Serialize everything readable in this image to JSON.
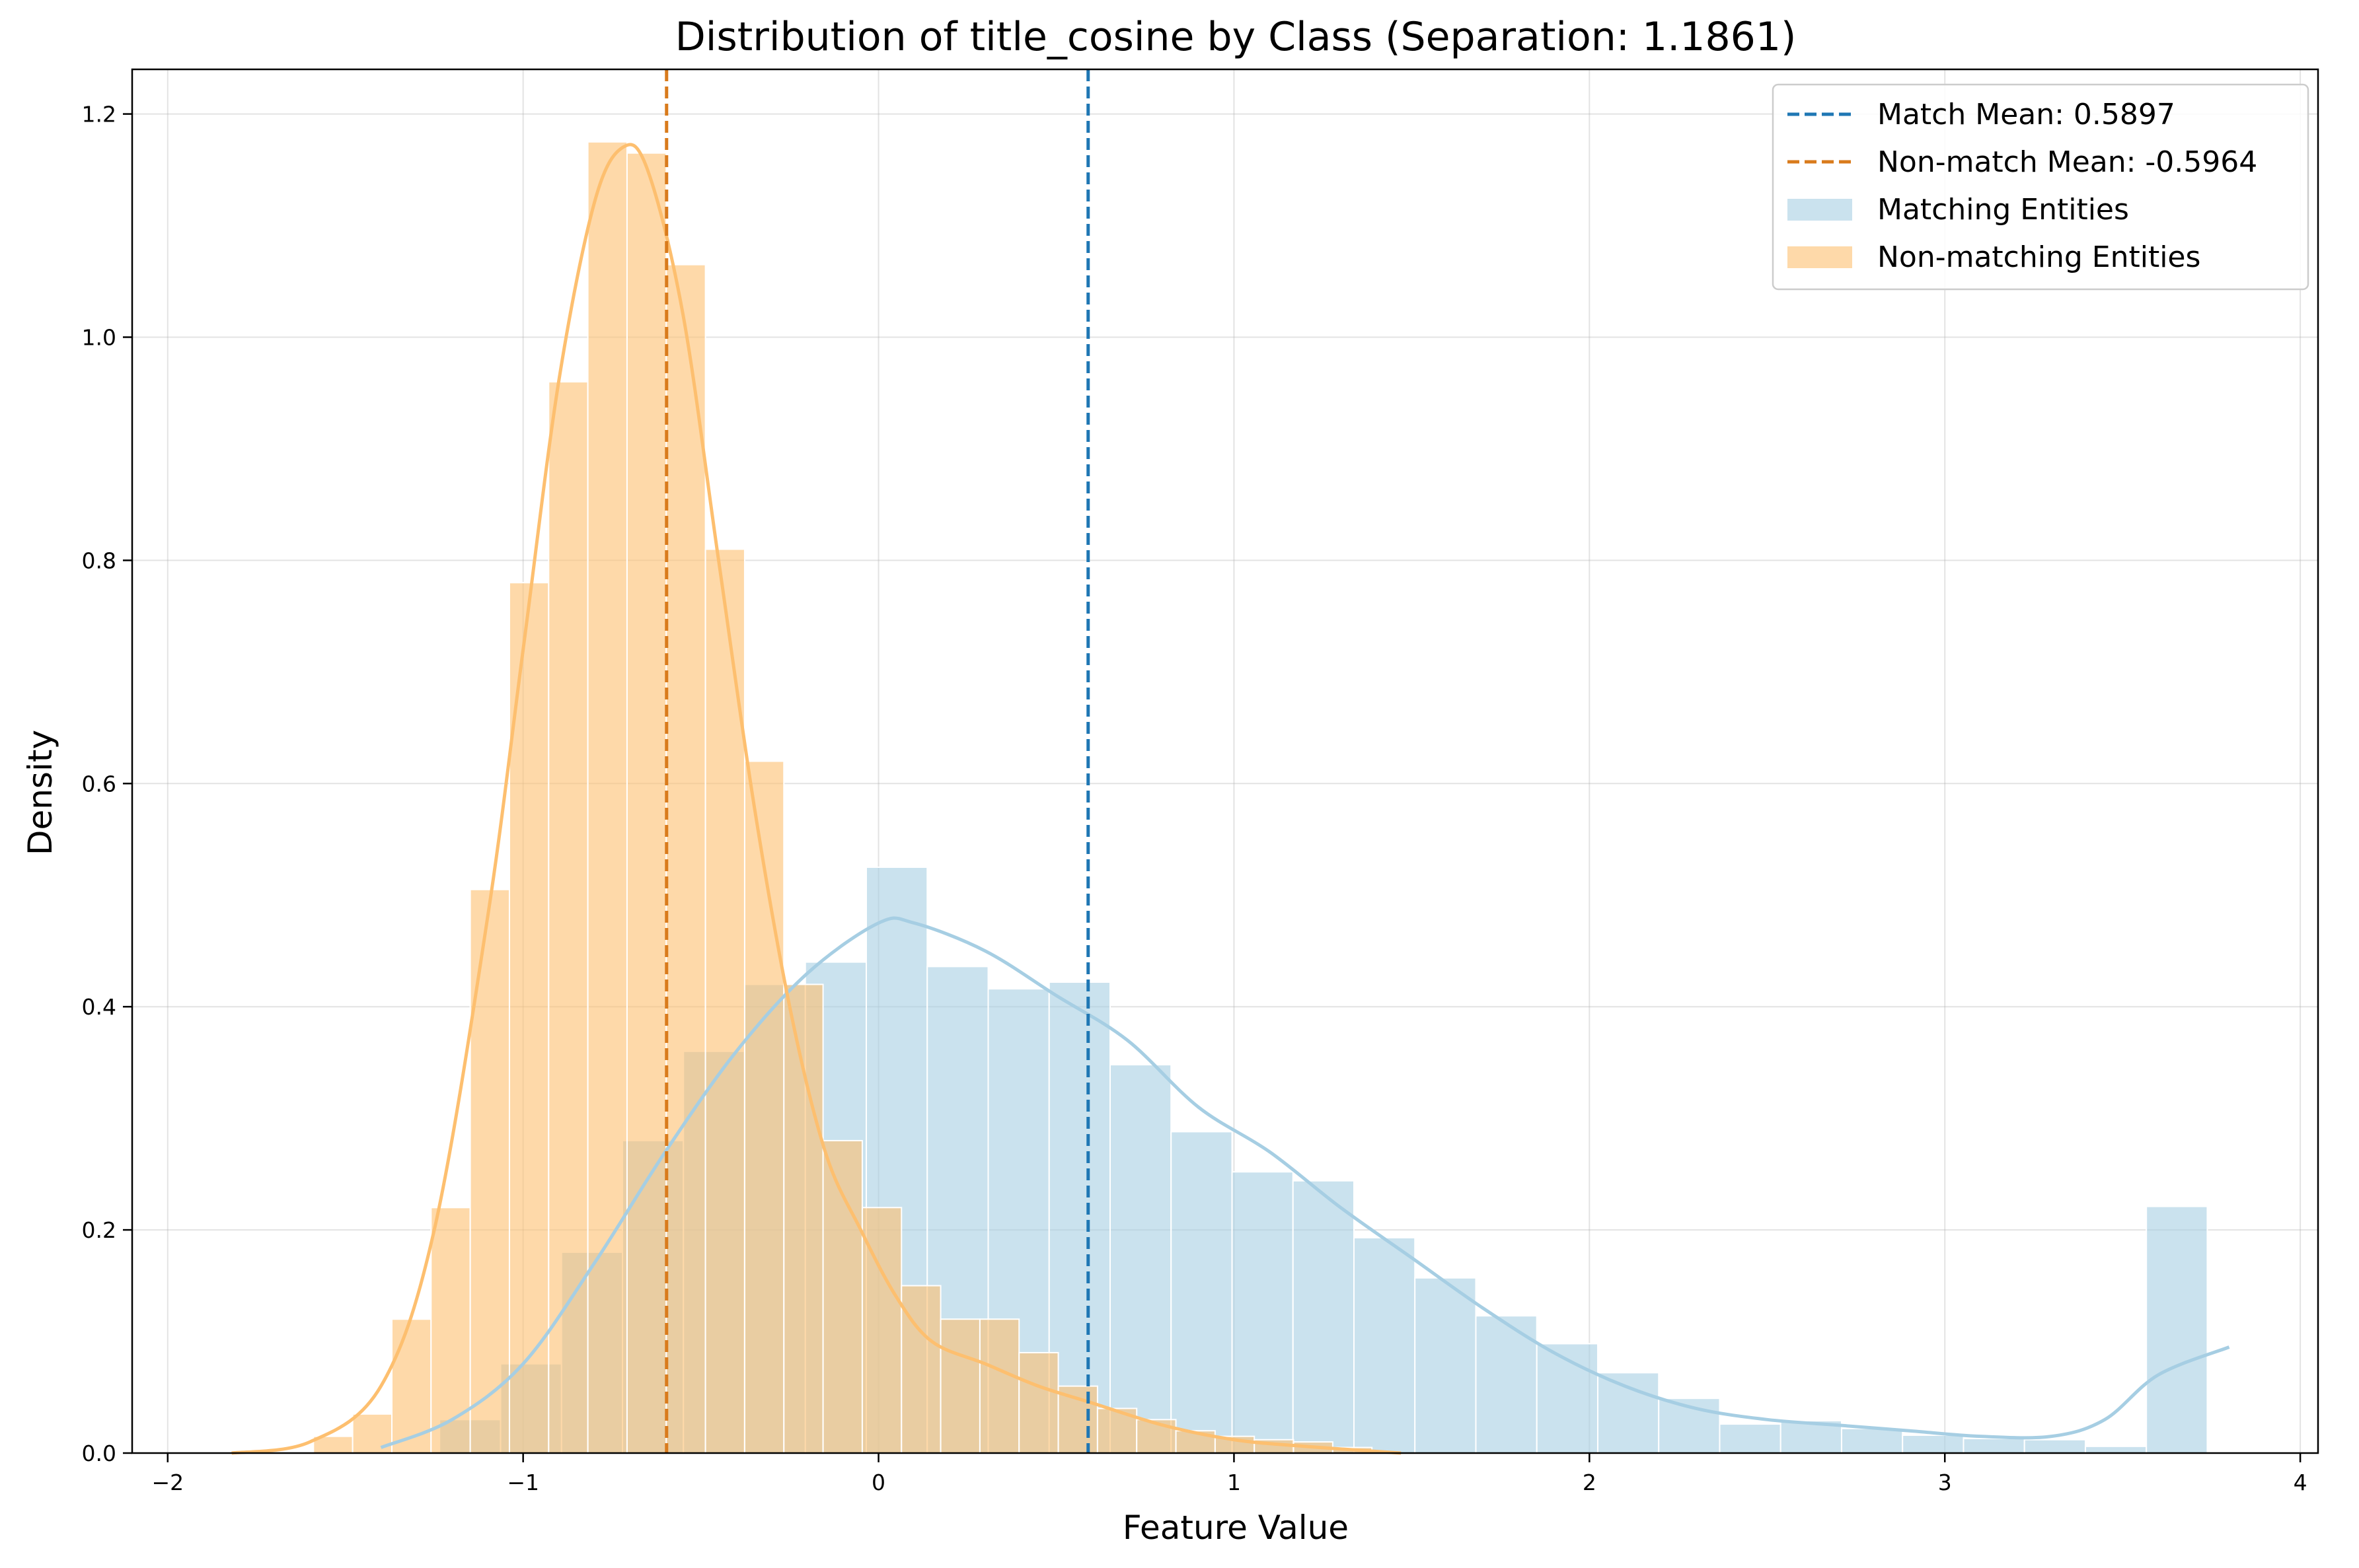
{
  "chart_data": {
    "type": "bar",
    "title": "Distribution of title_cosine by Class (Separation: 1.1861)",
    "xlabel": "Feature Value",
    "ylabel": "Density",
    "xlim": [
      -2.1,
      4.05
    ],
    "ylim": [
      0,
      1.24
    ],
    "xticks": [
      -2,
      -1,
      0,
      1,
      2,
      3,
      4
    ],
    "xtick_labels": [
      "−2",
      "−1",
      "0",
      "1",
      "2",
      "3",
      "4"
    ],
    "yticks": [
      0.0,
      0.2,
      0.4,
      0.6,
      0.8,
      1.0,
      1.2
    ],
    "ytick_labels": [
      "0.0",
      "0.2",
      "0.4",
      "0.6",
      "0.8",
      "1.0",
      "1.2"
    ],
    "grid": true,
    "legend_position": "top-right",
    "vlines": [
      {
        "name": "Match Mean: 0.5897",
        "x": 0.5897,
        "color": "#1f77b4",
        "style": "dashed"
      },
      {
        "name": "Non-match Mean: -0.5964",
        "x": -0.5964,
        "color": "#d97b1c",
        "style": "dashed"
      }
    ],
    "series": [
      {
        "name": "Matching Entities",
        "color": "#a6cee3",
        "bin_start": -1.235,
        "bin_width": 0.1715,
        "values": [
          0.03,
          0.08,
          0.18,
          0.28,
          0.36,
          0.42,
          0.44,
          0.525,
          0.436,
          0.416,
          0.422,
          0.348,
          0.288,
          0.252,
          0.244,
          0.193,
          0.157,
          0.123,
          0.098,
          0.072,
          0.049,
          0.026,
          0.029,
          0.022,
          0.016,
          0.013,
          0.012,
          0.006,
          0.221
        ],
        "kde": {
          "x": [
            -1.4,
            -1.2,
            -1.0,
            -0.8,
            -0.6,
            -0.4,
            -0.2,
            0.0,
            0.1,
            0.3,
            0.5,
            0.7,
            0.9,
            1.1,
            1.3,
            1.5,
            1.7,
            1.9,
            2.1,
            2.3,
            2.5,
            2.7,
            2.9,
            3.1,
            3.3,
            3.45,
            3.6,
            3.8
          ],
          "y": [
            0.005,
            0.03,
            0.08,
            0.17,
            0.27,
            0.36,
            0.43,
            0.475,
            0.475,
            0.45,
            0.41,
            0.37,
            0.31,
            0.27,
            0.22,
            0.175,
            0.13,
            0.09,
            0.06,
            0.04,
            0.03,
            0.025,
            0.02,
            0.015,
            0.015,
            0.03,
            0.07,
            0.095
          ]
        }
      },
      {
        "name": "Non-matching Entities",
        "color": "#fdbf6f",
        "bin_start": -1.59,
        "bin_width": 0.1103,
        "values": [
          0.015,
          0.035,
          0.12,
          0.22,
          0.505,
          0.78,
          0.96,
          1.175,
          1.165,
          1.065,
          0.81,
          0.62,
          0.42,
          0.28,
          0.22,
          0.15,
          0.12,
          0.12,
          0.09,
          0.06,
          0.04,
          0.03,
          0.02,
          0.015,
          0.012,
          0.01,
          0.005
        ],
        "kde": {
          "x": [
            -1.82,
            -1.6,
            -1.4,
            -1.25,
            -1.1,
            -1.0,
            -0.9,
            -0.8,
            -0.72,
            -0.65,
            -0.55,
            -0.45,
            -0.35,
            -0.25,
            -0.15,
            -0.05,
            0.05,
            0.15,
            0.3,
            0.45,
            0.6,
            0.8,
            1.0,
            1.2,
            1.47
          ],
          "y": [
            0.0,
            0.01,
            0.06,
            0.2,
            0.48,
            0.72,
            0.96,
            1.12,
            1.17,
            1.15,
            1.02,
            0.8,
            0.58,
            0.4,
            0.27,
            0.2,
            0.14,
            0.1,
            0.08,
            0.06,
            0.045,
            0.025,
            0.012,
            0.006,
            0.0
          ]
        }
      }
    ]
  }
}
